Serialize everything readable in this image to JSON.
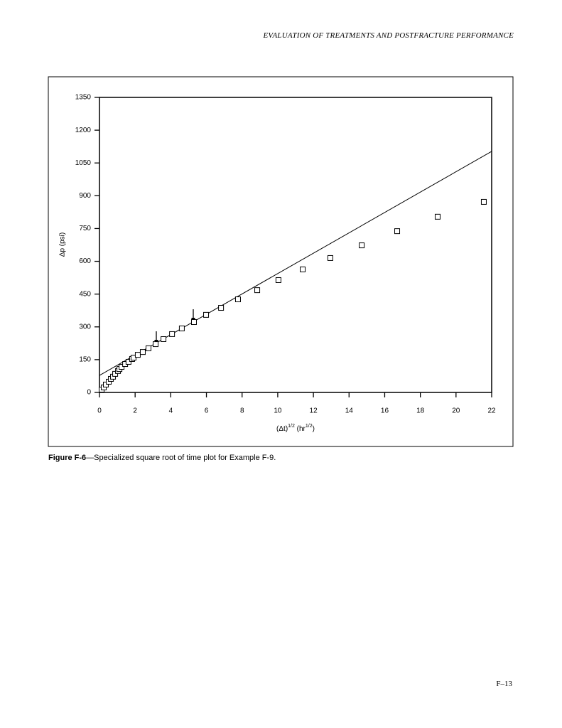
{
  "header": {
    "title": "EVALUATION OF TREATMENTS AND POSTFRACTURE PERFORMANCE"
  },
  "chart_data": {
    "type": "scatter",
    "y_label": "Δp (psi)",
    "x_label_parts": [
      "(Δt)",
      "1/2",
      " (hr",
      "1/2",
      ")"
    ],
    "xlim": [
      0,
      22
    ],
    "xticks": [
      0,
      2,
      4,
      6,
      8,
      10,
      12,
      14,
      16,
      18,
      20,
      22
    ],
    "ylim": [
      0,
      1350
    ],
    "yticks": [
      0,
      150,
      300,
      450,
      600,
      750,
      900,
      1050,
      1200,
      1350
    ],
    "color": "#000000",
    "x": [
      0.12,
      0.24,
      0.36,
      0.52,
      0.64,
      0.76,
      0.88,
      1.04,
      1.12,
      1.24,
      1.44,
      1.63,
      1.83,
      1.91,
      2.15,
      2.43,
      2.75,
      3.15,
      3.59,
      4.07,
      4.62,
      5.3,
      5.98,
      6.82,
      7.77,
      8.85,
      10.04,
      11.4,
      12.95,
      14.71,
      16.7,
      18.97,
      21.56
    ],
    "values": [
      13,
      23,
      36,
      49,
      62,
      72,
      85,
      98,
      107,
      117,
      130,
      140,
      153,
      159,
      172,
      185,
      202,
      221,
      244,
      267,
      293,
      322,
      355,
      387,
      426,
      468,
      514,
      563,
      615,
      673,
      738,
      804,
      872
    ],
    "fit_line": {
      "x": [
        0,
        22
      ],
      "y": [
        78,
        1103
      ]
    }
  },
  "caption": {
    "label": "Figure F-6",
    "text": "—Specialized square root of time plot for Example F-9."
  },
  "footer": {
    "page": "F–13"
  }
}
